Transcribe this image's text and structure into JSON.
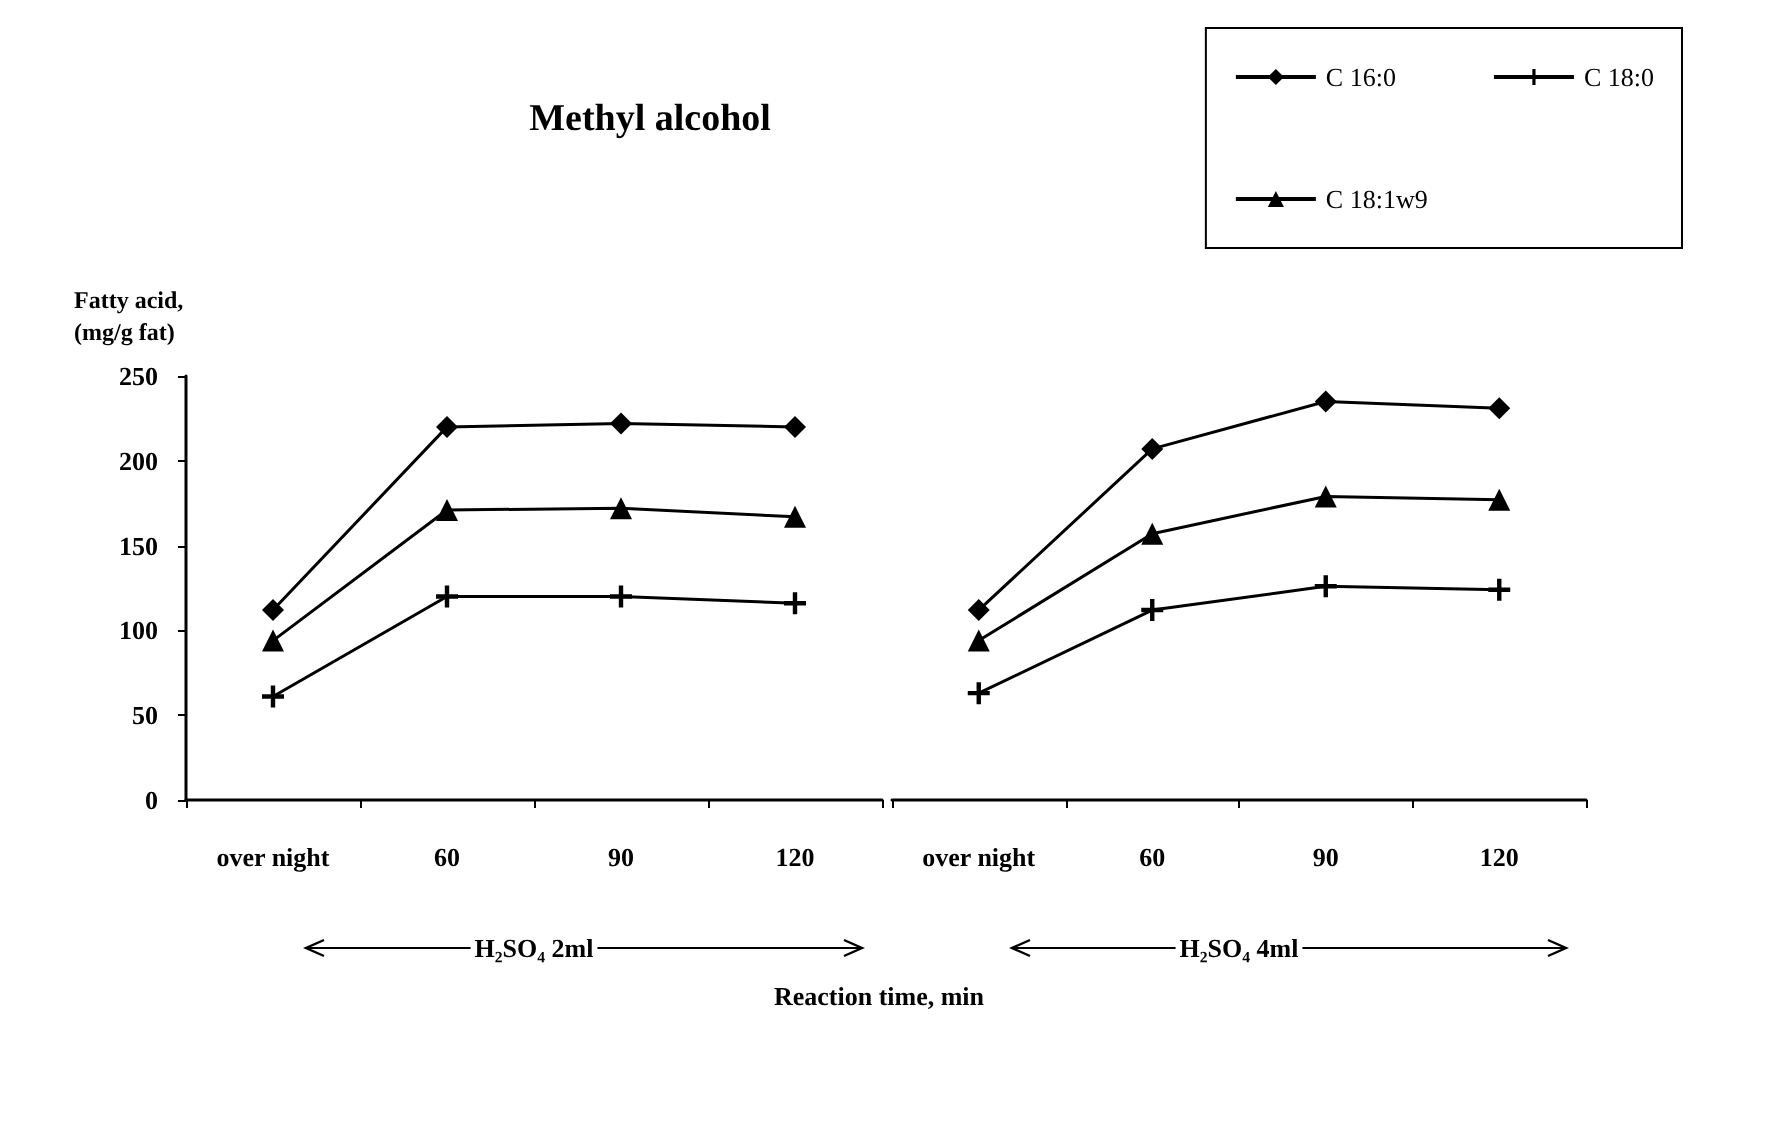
{
  "chart_data": [
    {
      "type": "line",
      "title": "Methyl alcohol",
      "ylabel": "Fatty acid,\n(mg/g fat)",
      "xlabel": "Reaction time, min",
      "categories": [
        "over night",
        "60",
        "90",
        "120"
      ],
      "ylim": [
        0,
        250
      ],
      "yticks": [
        0,
        50,
        100,
        150,
        200,
        250
      ],
      "grid": false,
      "legend": "top right",
      "annotations": [
        "H₂SO₄ 2ml"
      ],
      "series": [
        {
          "name": "C 16:0",
          "color": "#000000",
          "marker": "diamond",
          "values": [
            112,
            220,
            222,
            220
          ]
        },
        {
          "name": "C 18:0",
          "color": "#000000",
          "marker": "cross",
          "values": [
            61,
            120,
            120,
            116
          ]
        },
        {
          "name": "C 18:1w9",
          "color": "#000000",
          "marker": "triangle",
          "values": [
            94,
            171,
            172,
            167
          ]
        }
      ]
    },
    {
      "type": "line",
      "categories": [
        "over night",
        "60",
        "90",
        "120"
      ],
      "ylim": [
        0,
        250
      ],
      "yticks": [
        0,
        50,
        100,
        150,
        200,
        250
      ],
      "grid": false,
      "tick_labels": "x",
      "annotations": [
        "H₂SO₄ 4ml"
      ],
      "series": [
        {
          "color": "#000000",
          "marker": "diamond",
          "values": [
            112,
            207,
            235,
            231
          ]
        },
        {
          "color": "#000000",
          "marker": "cross",
          "values": [
            63,
            112,
            126,
            124
          ]
        },
        {
          "color": "#000000",
          "marker": "triangle",
          "values": [
            94,
            157,
            179,
            177
          ]
        }
      ]
    }
  ]
}
